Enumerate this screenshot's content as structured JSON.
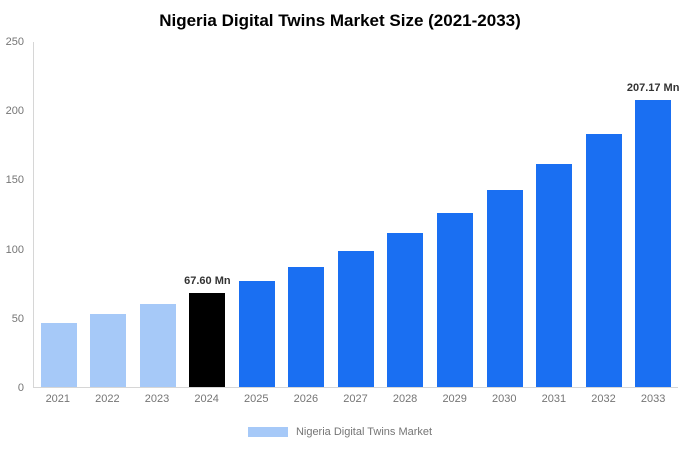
{
  "title": "Nigeria Digital Twins Market Size (2021-2033)",
  "legend": {
    "label": "Nigeria Digital Twins Market",
    "swatch_color": "#a6c9f8"
  },
  "colors": {
    "light_blue": "#a6c9f8",
    "blue": "#1a6ff2",
    "black": "#000000",
    "axis": "#d6d6d6",
    "tick_text": "#757575",
    "annotation_text": "#333333"
  },
  "chart_data": {
    "type": "bar",
    "title": "Nigeria Digital Twins Market Size (2021-2033)",
    "categories": [
      "2021",
      "2022",
      "2023",
      "2024",
      "2025",
      "2026",
      "2027",
      "2028",
      "2029",
      "2030",
      "2031",
      "2032",
      "2033"
    ],
    "values": [
      46.5,
      52.7,
      59.7,
      67.6,
      76.6,
      86.7,
      98.2,
      111.2,
      125.9,
      142.6,
      161.5,
      182.9,
      207.17
    ],
    "unit": "Mn",
    "bar_colors": [
      "light_blue",
      "light_blue",
      "light_blue",
      "black",
      "blue",
      "blue",
      "blue",
      "blue",
      "blue",
      "blue",
      "blue",
      "blue",
      "blue"
    ],
    "annotations": [
      {
        "category": "2024",
        "text": "67.60 Mn"
      },
      {
        "category": "2033",
        "text": "207.17 Mn"
      }
    ],
    "xlabel": "",
    "ylabel": "",
    "ylim": [
      0,
      250
    ],
    "yticks": [
      0,
      50,
      100,
      150,
      200,
      250
    ],
    "grid": false,
    "legend_position": "bottom",
    "legend_entries": [
      "Nigeria Digital Twins Market"
    ]
  }
}
